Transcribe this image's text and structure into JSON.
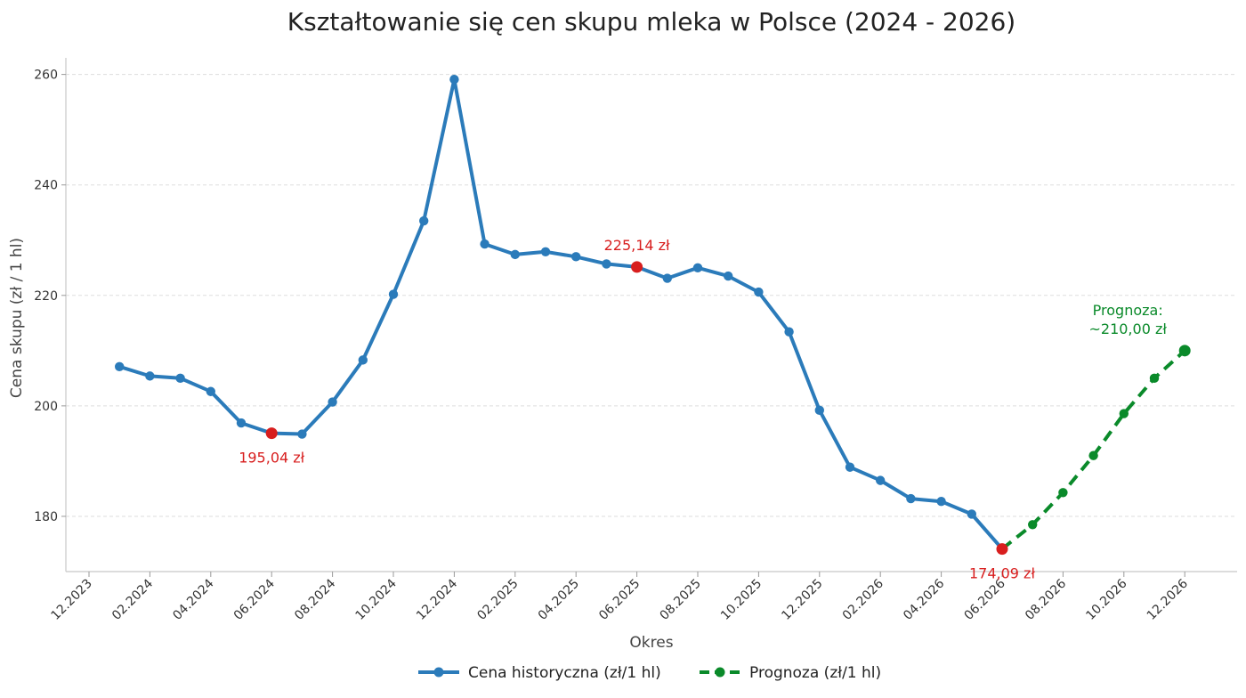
{
  "chart_data": {
    "type": "line",
    "title": "Kształtowanie się cen skupu mleka w Polsce (2024 - 2026)",
    "xlabel": "Okres",
    "ylabel": "Cena skupu (zł / 1 hl)",
    "ylim": [
      170,
      263
    ],
    "yticks": [
      180,
      200,
      220,
      240,
      260
    ],
    "grid": "horizontal dashed",
    "xticks": [
      "12.2023",
      "02.2024",
      "04.2024",
      "06.2024",
      "08.2024",
      "10.2024",
      "12.2024",
      "02.2025",
      "04.2025",
      "06.2025",
      "08.2025",
      "10.2025",
      "12.2025",
      "02.2026",
      "04.2026",
      "06.2026",
      "08.2026",
      "10.2026",
      "12.2026"
    ],
    "series": [
      {
        "name": "Cena historyczna (zł/1 hl)",
        "color": "#2b7bba",
        "style": "solid",
        "x": [
          "01.2024",
          "02.2024",
          "03.2024",
          "04.2024",
          "05.2024",
          "06.2024",
          "07.2024",
          "08.2024",
          "09.2024",
          "10.2024",
          "11.2024",
          "12.2024",
          "01.2025",
          "02.2025",
          "03.2025",
          "04.2025",
          "05.2025",
          "06.2025",
          "07.2025",
          "08.2025",
          "09.2025",
          "10.2025",
          "11.2025",
          "12.2025",
          "01.2026",
          "02.2026",
          "03.2026",
          "04.2026",
          "05.2026",
          "06.2026"
        ],
        "values": [
          207.1,
          205.4,
          205.0,
          202.6,
          196.9,
          195.04,
          194.9,
          200.7,
          208.3,
          220.2,
          233.5,
          259.1,
          229.3,
          227.4,
          227.9,
          227.0,
          225.7,
          225.14,
          223.1,
          225.0,
          223.5,
          220.6,
          213.4,
          199.2,
          188.9,
          186.5,
          183.2,
          182.7,
          180.4,
          174.09
        ]
      },
      {
        "name": "Prognoza (zł/1 hl)",
        "color": "#0a8a2a",
        "style": "dashed",
        "x": [
          "06.2026",
          "07.2026",
          "08.2026",
          "09.2026",
          "10.2026",
          "11.2026",
          "12.2026"
        ],
        "values": [
          174.09,
          178.5,
          184.3,
          191.0,
          198.6,
          205.0,
          210.0
        ]
      }
    ],
    "annotations": [
      {
        "x": "06.2024",
        "y": 195.04,
        "text": "195,04 zł",
        "color": "#d81e1e",
        "pos": "below"
      },
      {
        "x": "06.2025",
        "y": 225.14,
        "text": "225,14 zł",
        "color": "#d81e1e",
        "pos": "above"
      },
      {
        "x": "06.2026",
        "y": 174.09,
        "text": "174,09 zł",
        "color": "#d81e1e",
        "pos": "below"
      }
    ],
    "forecast_label": [
      "Prognoza:",
      "~210,00 zł"
    ],
    "forecast_label_color": "#0a8a2a",
    "legend": "bottom-center"
  }
}
